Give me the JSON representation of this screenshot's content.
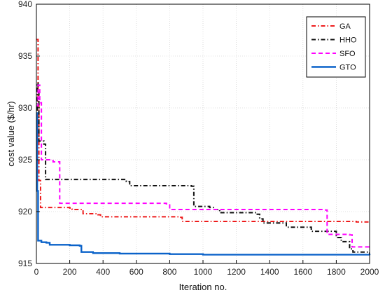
{
  "chart_data": {
    "type": "line",
    "title": "",
    "xlabel": "Iteration no.",
    "ylabel": "cost value ($/hr)",
    "xlim": [
      0,
      2000
    ],
    "ylim": [
      915,
      940
    ],
    "x_ticks": [
      0,
      200,
      400,
      600,
      800,
      1000,
      1200,
      1400,
      1600,
      1800,
      2000
    ],
    "y_ticks": [
      915,
      920,
      925,
      930,
      935,
      940
    ],
    "grid": true,
    "legend_position": "top-right",
    "series": [
      {
        "name": "GA",
        "color": "#ee1c1c",
        "dash": "dashdot",
        "points": [
          [
            0,
            936.6
          ],
          [
            10,
            930.5
          ],
          [
            15,
            923.0
          ],
          [
            25,
            920.4
          ],
          [
            200,
            920.35
          ],
          [
            215,
            920.2
          ],
          [
            280,
            919.8
          ],
          [
            370,
            919.7
          ],
          [
            385,
            919.5
          ],
          [
            860,
            919.45
          ],
          [
            875,
            919.05
          ],
          [
            1920,
            919.0
          ],
          [
            2000,
            919.0
          ]
        ]
      },
      {
        "name": "HHO",
        "color": "#111111",
        "dash": "dashdot",
        "points": [
          [
            0,
            928.9
          ],
          [
            5,
            932.4
          ],
          [
            10,
            931.5
          ],
          [
            15,
            926.8
          ],
          [
            45,
            926.5
          ],
          [
            55,
            923.1
          ],
          [
            540,
            922.9
          ],
          [
            560,
            922.5
          ],
          [
            930,
            922.45
          ],
          [
            945,
            920.5
          ],
          [
            1040,
            920.4
          ],
          [
            1070,
            920.2
          ],
          [
            1100,
            919.9
          ],
          [
            1320,
            919.75
          ],
          [
            1340,
            919.3
          ],
          [
            1360,
            918.9
          ],
          [
            1500,
            918.5
          ],
          [
            1650,
            918.1
          ],
          [
            1800,
            917.5
          ],
          [
            1830,
            917.1
          ],
          [
            1880,
            916.4
          ],
          [
            1900,
            916.1
          ],
          [
            1990,
            916.0
          ],
          [
            2000,
            916.0
          ]
        ]
      },
      {
        "name": "SFO",
        "color": "#ff00ff",
        "dash": "dashed",
        "points": [
          [
            0,
            930.2
          ],
          [
            10,
            932.2
          ],
          [
            20,
            930.5
          ],
          [
            30,
            925.0
          ],
          [
            100,
            924.8
          ],
          [
            140,
            920.8
          ],
          [
            780,
            920.75
          ],
          [
            800,
            920.2
          ],
          [
            1730,
            920.15
          ],
          [
            1745,
            917.8
          ],
          [
            1880,
            917.75
          ],
          [
            1895,
            916.6
          ],
          [
            2000,
            916.6
          ]
        ]
      },
      {
        "name": "GTO",
        "color": "#0a62c9",
        "dash": "solid",
        "points": [
          [
            0,
            929.5
          ],
          [
            5,
            922.0
          ],
          [
            10,
            917.2
          ],
          [
            30,
            917.05
          ],
          [
            60,
            917.0
          ],
          [
            80,
            916.8
          ],
          [
            200,
            916.75
          ],
          [
            260,
            916.7
          ],
          [
            270,
            916.1
          ],
          [
            340,
            916.0
          ],
          [
            500,
            915.95
          ],
          [
            800,
            915.9
          ],
          [
            1000,
            915.85
          ],
          [
            2000,
            915.8
          ]
        ]
      }
    ]
  }
}
